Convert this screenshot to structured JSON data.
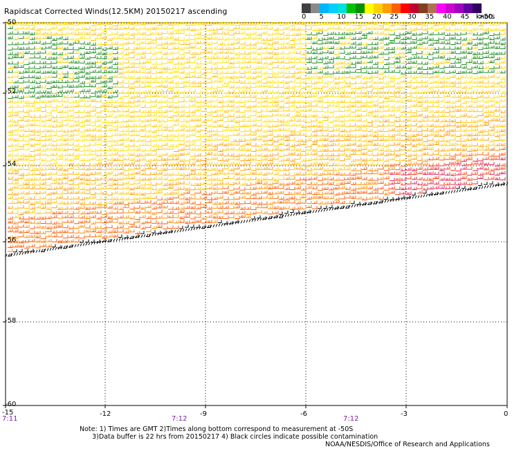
{
  "title": "Rapidscat Corrected Winds(12.5KM) 20150217 ascending",
  "colorbar": {
    "colors": [
      "#404040",
      "#8a8a8a",
      "#00b4ff",
      "#00d0ff",
      "#00e0e0",
      "#00c000",
      "#009000",
      "#ffff00",
      "#ffd000",
      "#ff9e00",
      "#ff6000",
      "#ff0000",
      "#c00030",
      "#804020",
      "#b07050",
      "#ff00ff",
      "#d000d0",
      "#a000c0",
      "#6000a0",
      "#300060"
    ],
    "labels": [
      "0",
      "5",
      "10",
      "15",
      "20",
      "25",
      "30",
      "35",
      "40",
      "45",
      ">50"
    ],
    "units": "knots"
  },
  "axes": {
    "lat_labels": [
      "-50",
      "-52",
      "-54",
      "-56",
      "-58",
      "-60"
    ],
    "lon_labels": [
      "-15",
      "-12",
      "-9",
      "-6",
      "-3",
      "0"
    ],
    "time_labels": [
      "7:11",
      "7:12",
      "7:12"
    ]
  },
  "note_line1": "Note: 1) Times are GMT 2)Times along bottom correspond to measurement at -50S",
  "note_line2": "3)Data buffer is 22 hrs from 20150217 4) Black circles indicate possible contamination",
  "credit": "NOAA/NESDIS/Office of Research and Applications"
}
